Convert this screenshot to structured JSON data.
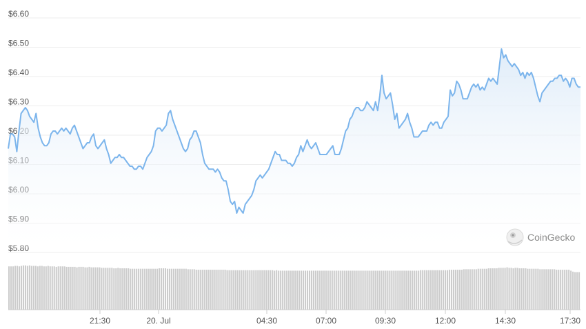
{
  "chart_data": {
    "type": "area",
    "title": "",
    "xlabel": "",
    "ylabel": "",
    "ylim": [
      5.8,
      6.6
    ],
    "y_ticks": [
      "$6.60",
      "$6.50",
      "$6.40",
      "$6.30",
      "$6.20",
      "$6.10",
      "$6.00",
      "$5.90",
      "$5.80"
    ],
    "y_tick_values": [
      6.6,
      6.5,
      6.4,
      6.3,
      6.2,
      6.1,
      6.0,
      5.9,
      5.8
    ],
    "x_ticks": [
      "21:30",
      "20. Jul",
      "04:30",
      "07:00",
      "09:30",
      "12:00",
      "14:30",
      "17:30"
    ],
    "grid": true,
    "legend": "none",
    "colors": {
      "line": "#7cb5ec",
      "fill_top": "#dceaf8",
      "fill_bottom": "#ffffff",
      "volume": "#cccccc",
      "grid": "#eeeeee"
    },
    "series": [
      {
        "values": [
          6.14,
          6.19,
          6.19,
          6.18,
          6.13,
          6.2,
          6.26,
          6.27,
          6.28,
          6.27,
          6.25,
          6.24,
          6.23,
          6.26,
          6.21,
          6.18,
          6.16,
          6.15,
          6.15,
          6.16,
          6.19,
          6.2,
          6.2,
          6.19,
          6.2,
          6.21,
          6.2,
          6.21,
          6.2,
          6.19,
          6.21,
          6.22,
          6.2,
          6.18,
          6.16,
          6.14,
          6.15,
          6.16,
          6.16,
          6.18,
          6.19,
          6.15,
          6.14,
          6.15,
          6.16,
          6.17,
          6.14,
          6.12,
          6.09,
          6.1,
          6.11,
          6.11,
          6.12,
          6.11,
          6.11,
          6.1,
          6.09,
          6.08,
          6.08,
          6.07,
          6.07,
          6.08,
          6.08,
          6.07,
          6.09,
          6.11,
          6.12,
          6.13,
          6.15,
          6.2,
          6.21,
          6.21,
          6.2,
          6.21,
          6.22,
          6.26,
          6.27,
          6.24,
          6.22,
          6.2,
          6.18,
          6.16,
          6.14,
          6.13,
          6.14,
          6.17,
          6.18,
          6.2,
          6.2,
          6.18,
          6.16,
          6.12,
          6.09,
          6.08,
          6.07,
          6.07,
          6.07,
          6.06,
          6.07,
          6.06,
          6.04,
          6.03,
          6.03,
          6.0,
          5.96,
          5.95,
          5.96,
          5.92,
          5.94,
          5.93,
          5.92,
          5.95,
          5.96,
          5.97,
          5.98,
          6.0,
          6.03,
          6.04,
          6.05,
          6.04,
          6.05,
          6.06,
          6.07,
          6.09,
          6.11,
          6.13,
          6.12,
          6.12,
          6.1,
          6.1,
          6.1,
          6.09,
          6.09,
          6.08,
          6.09,
          6.11,
          6.12,
          6.15,
          6.13,
          6.15,
          6.17,
          6.15,
          6.14,
          6.15,
          6.16,
          6.14,
          6.12,
          6.12,
          6.12,
          6.12,
          6.13,
          6.14,
          6.15,
          6.12,
          6.12,
          6.12,
          6.14,
          6.17,
          6.2,
          6.21,
          6.24,
          6.25,
          6.27,
          6.28,
          6.28,
          6.27,
          6.27,
          6.28,
          6.3,
          6.29,
          6.28,
          6.27,
          6.3,
          6.27,
          6.32,
          6.39,
          6.33,
          6.31,
          6.32,
          6.33,
          6.29,
          6.24,
          6.26,
          6.21,
          6.22,
          6.23,
          6.24,
          6.26,
          6.23,
          6.21,
          6.18,
          6.18,
          6.18,
          6.19,
          6.2,
          6.2,
          6.2,
          6.22,
          6.23,
          6.22,
          6.23,
          6.23,
          6.21,
          6.21,
          6.23,
          6.24,
          6.25,
          6.34,
          6.32,
          6.33,
          6.37,
          6.36,
          6.34,
          6.31,
          6.31,
          6.31,
          6.33,
          6.35,
          6.36,
          6.35,
          6.36,
          6.34,
          6.35,
          6.34,
          6.36,
          6.38,
          6.37,
          6.38,
          6.37,
          6.36,
          6.42,
          6.48,
          6.45,
          6.46,
          6.44,
          6.43,
          6.42,
          6.43,
          6.42,
          6.41,
          6.39,
          6.4,
          6.38,
          6.4,
          6.39,
          6.4,
          6.38,
          6.35,
          6.32,
          6.3,
          6.33,
          6.34,
          6.35,
          6.36,
          6.37,
          6.37,
          6.38,
          6.38,
          6.39,
          6.39,
          6.37,
          6.38,
          6.37,
          6.35,
          6.38,
          6.38,
          6.36,
          6.35,
          6.35
        ]
      }
    ],
    "volume": [
      0.91,
      0.91,
      0.91,
      0.92,
      0.92,
      0.91,
      0.92,
      0.93,
      0.93,
      0.92,
      0.93,
      0.92,
      0.92,
      0.92,
      0.91,
      0.92,
      0.92,
      0.91,
      0.91,
      0.92,
      0.91,
      0.91,
      0.91,
      0.9,
      0.91,
      0.91,
      0.91,
      0.91,
      0.9,
      0.9,
      0.9,
      0.9,
      0.9,
      0.89,
      0.9,
      0.9,
      0.9,
      0.89,
      0.89,
      0.9,
      0.89,
      0.89,
      0.89,
      0.89,
      0.89,
      0.88,
      0.88,
      0.88,
      0.88,
      0.88,
      0.88,
      0.87,
      0.87,
      0.88,
      0.87,
      0.87,
      0.87,
      0.87,
      0.87,
      0.86,
      0.86,
      0.86,
      0.86,
      0.86,
      0.86,
      0.86,
      0.86,
      0.86,
      0.86,
      0.86,
      0.86,
      0.86,
      0.86,
      0.87,
      0.87,
      0.87,
      0.87,
      0.86,
      0.86,
      0.86,
      0.86,
      0.86,
      0.86,
      0.86,
      0.86,
      0.86,
      0.86,
      0.85,
      0.85,
      0.85,
      0.85,
      0.84,
      0.84,
      0.84,
      0.84,
      0.84,
      0.84,
      0.84,
      0.84,
      0.84,
      0.84,
      0.84,
      0.84,
      0.84,
      0.84,
      0.84,
      0.83,
      0.83,
      0.83,
      0.83,
      0.83,
      0.83,
      0.83,
      0.83,
      0.83,
      0.83,
      0.83,
      0.83,
      0.83,
      0.83,
      0.83,
      0.83,
      0.83,
      0.83,
      0.83,
      0.83,
      0.83,
      0.83,
      0.83,
      0.82,
      0.83,
      0.82,
      0.82,
      0.82,
      0.82,
      0.82,
      0.82,
      0.82,
      0.82,
      0.82,
      0.82,
      0.82,
      0.82,
      0.82,
      0.82,
      0.82,
      0.82,
      0.82,
      0.82,
      0.82,
      0.82,
      0.82,
      0.82,
      0.82,
      0.82,
      0.82,
      0.82,
      0.82,
      0.82,
      0.82,
      0.82,
      0.82,
      0.82,
      0.82,
      0.82,
      0.82,
      0.82,
      0.82,
      0.82,
      0.82,
      0.82,
      0.82,
      0.82,
      0.82,
      0.82,
      0.82,
      0.82,
      0.82,
      0.82,
      0.82,
      0.82,
      0.82,
      0.82,
      0.82,
      0.82,
      0.82,
      0.82,
      0.82,
      0.82,
      0.82,
      0.82,
      0.82,
      0.82,
      0.82,
      0.82,
      0.82,
      0.82,
      0.82,
      0.82,
      0.82,
      0.83,
      0.83,
      0.83,
      0.83,
      0.83,
      0.83,
      0.83,
      0.83,
      0.83,
      0.83,
      0.83,
      0.83,
      0.83,
      0.83,
      0.84,
      0.84,
      0.84,
      0.84,
      0.84,
      0.84,
      0.84,
      0.85,
      0.85,
      0.85,
      0.85,
      0.85,
      0.85,
      0.85,
      0.86,
      0.86,
      0.86,
      0.86,
      0.86,
      0.87,
      0.87,
      0.87,
      0.87,
      0.87,
      0.88,
      0.88,
      0.88,
      0.88,
      0.89,
      0.88,
      0.88,
      0.87,
      0.88,
      0.88,
      0.87,
      0.87,
      0.87,
      0.87,
      0.86,
      0.86,
      0.86,
      0.86,
      0.86,
      0.86,
      0.85,
      0.85,
      0.85,
      0.85,
      0.85,
      0.85,
      0.85,
      0.85,
      0.84,
      0.84,
      0.84,
      0.84,
      0.84,
      0.84,
      0.84,
      0.82,
      0.8,
      0.79,
      0.79,
      0.79
    ]
  },
  "watermark": {
    "text": "CoinGecko",
    "icon": "gecko-logo-icon"
  }
}
